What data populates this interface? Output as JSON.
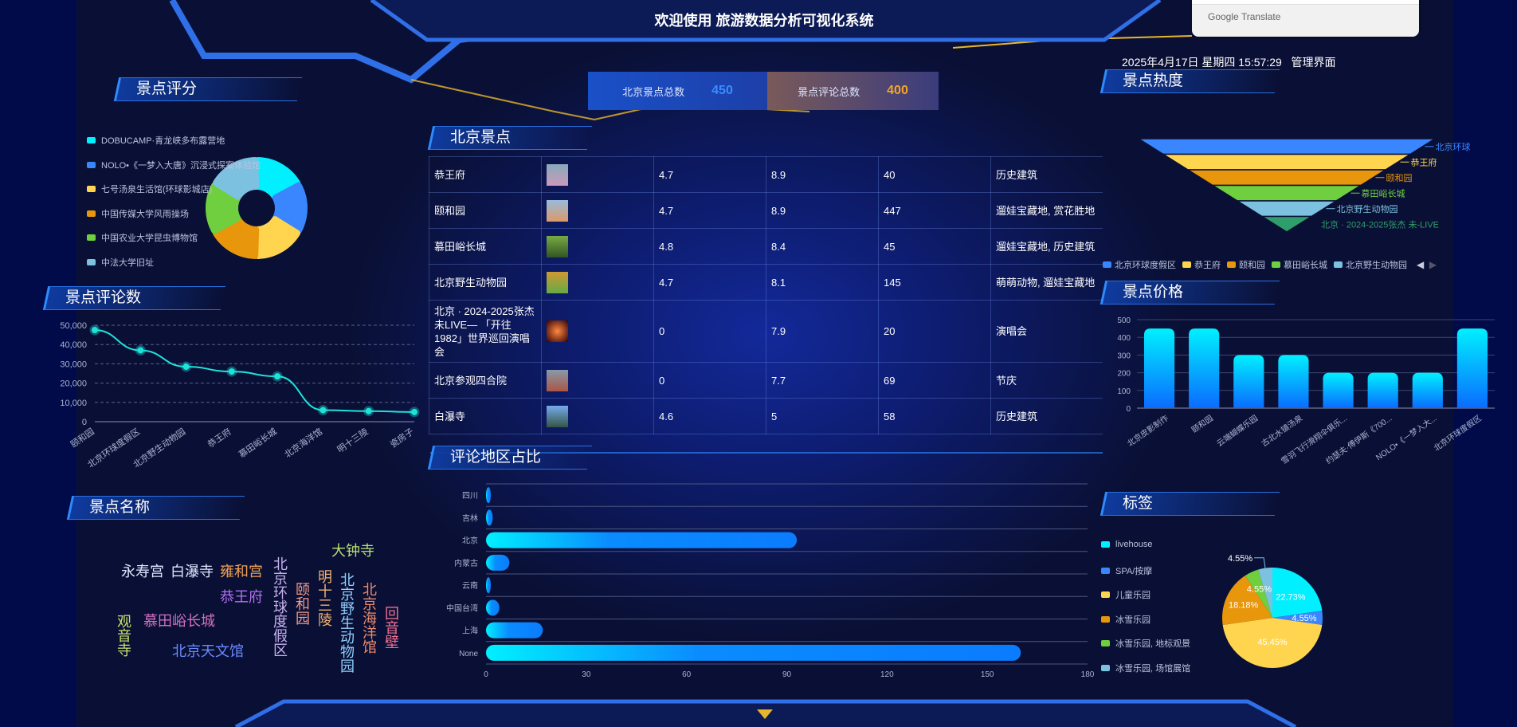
{
  "header": {
    "title": "欢迎使用 旅游数据分析可视化系统",
    "datetime": "2025年4月17日 星期四 15:57:29",
    "admin_link": "管理界面"
  },
  "stats": [
    {
      "label": "北京景点总数",
      "value": "450",
      "color": "#3a8dff"
    },
    {
      "label": "景点评论总数",
      "value": "400",
      "color": "#f5a623"
    }
  ],
  "google_translate": {
    "label": "Google Translate"
  },
  "panels": {
    "rating": "景点评分",
    "comments": "景点评论数",
    "names": "景点名称",
    "spots": "北京景点",
    "region": "评论地区占比",
    "heat": "景点热度",
    "price": "景点价格",
    "tags": "标签"
  },
  "table": {
    "rows": [
      {
        "name": "恭王府",
        "score": "4.7",
        "rating": "8.9",
        "count": "40",
        "tags": "历史建筑"
      },
      {
        "name": "颐和园",
        "score": "4.7",
        "rating": "8.9",
        "count": "447",
        "tags": "遛娃宝藏地, 赏花胜地"
      },
      {
        "name": "慕田峪长城",
        "score": "4.8",
        "rating": "8.4",
        "count": "45",
        "tags": "遛娃宝藏地, 历史建筑"
      },
      {
        "name": "北京野生动物园",
        "score": "4.7",
        "rating": "8.1",
        "count": "145",
        "tags": "萌萌动物, 遛娃宝藏地"
      },
      {
        "name": "北京 · 2024-2025张杰 未LIVE— 「开往1982」世界巡回演唱会",
        "score": "0",
        "rating": "7.9",
        "count": "20",
        "tags": "演唱会"
      },
      {
        "name": "北京参观四合院",
        "score": "0",
        "rating": "7.7",
        "count": "69",
        "tags": "节庆"
      },
      {
        "name": "白瀑寺",
        "score": "4.6",
        "rating": "5",
        "count": "58",
        "tags": "历史建筑"
      }
    ]
  },
  "word_cloud": [
    "永寿宫",
    "白瀑寺",
    "雍和宫",
    "恭王府",
    "北京环球度假区",
    "颐和园",
    "明十三陵",
    "大钟寺",
    "北京野生动物园",
    "北京海洋馆",
    "回音壁",
    "观音寺",
    "慕田峪长城",
    "北京天文馆"
  ],
  "chart_data": [
    {
      "id": "rating",
      "type": "pie",
      "variant": "rose-donut",
      "categories": [
        "DOBUCAMP·青龙峡多布露营地",
        "NOLO•《一梦入大唐》沉浸式探案体验馆",
        "七号汤泉生活馆(环球影城店)",
        "中国传媒大学风雨操场",
        "中国农业大学昆虫博物馆",
        "中法大学旧址"
      ],
      "values": [
        1,
        1,
        1,
        1,
        1,
        1
      ],
      "colors": [
        "#00f0ff",
        "#3a86ff",
        "#ffd54f",
        "#e8960c",
        "#6fcf3e",
        "#7cc1df"
      ],
      "legend": "left"
    },
    {
      "id": "comments",
      "type": "line",
      "categories": [
        "颐和园",
        "北京环球度假区",
        "北京野生动物园",
        "恭王府",
        "慕田峪长城",
        "北京海洋馆",
        "明十三陵",
        "瓷房子"
      ],
      "values": [
        47500,
        37000,
        28500,
        26000,
        23500,
        6000,
        5500,
        5000
      ],
      "ylim": [
        0,
        50000
      ],
      "yticks": [
        "0",
        "10,000",
        "20,000",
        "30,000",
        "40,000",
        "50,000"
      ],
      "grid": true,
      "color": "#1ee3d9"
    },
    {
      "id": "region",
      "type": "bar",
      "orientation": "horizontal",
      "categories": [
        "四川",
        "吉林",
        "北京",
        "内蒙古",
        "云南",
        "中国台湾",
        "上海",
        "None"
      ],
      "values": [
        1,
        2,
        93,
        7,
        1,
        4,
        17,
        160
      ],
      "xlim": [
        0,
        180
      ],
      "xticks": [
        "0",
        "30",
        "60",
        "90",
        "120",
        "150",
        "180"
      ],
      "grid": true
    },
    {
      "id": "heat",
      "type": "funnel",
      "categories": [
        "北京环球度假区",
        "恭王府",
        "颐和园",
        "慕田峪长城",
        "北京野生动物园",
        "北京 · 2024-2025张杰 未LIVE"
      ],
      "labels": [
        "北京环球",
        "恭王府",
        "颐和园",
        "慕田峪长城",
        "北京野生动物园",
        "北京 · 2024-2025张杰 未-LIVE"
      ],
      "values": [
        6,
        5,
        4,
        3,
        2,
        1
      ],
      "colors": [
        "#3a86ff",
        "#ffd54f",
        "#e8960c",
        "#6fcf3e",
        "#7cc1df",
        "#2e9e6a"
      ],
      "legend": "bottom"
    },
    {
      "id": "price",
      "type": "bar",
      "categories": [
        "北京皮影制作",
        "颐和园",
        "云端蝴蝶乐园",
        "古北水镇汤泉",
        "雪羽飞行滑翔伞俱乐...",
        "约瑟夫·傅伊斯《700...",
        "NOLO•《一梦入大...",
        "北京环球度假区"
      ],
      "values": [
        450,
        450,
        300,
        300,
        200,
        200,
        200,
        450
      ],
      "ylim": [
        0,
        500
      ],
      "yticks": [
        "0",
        "100",
        "200",
        "300",
        "400",
        "500"
      ],
      "grid": true
    },
    {
      "id": "tags",
      "type": "pie",
      "categories": [
        "livehouse",
        "SPA/按摩",
        "儿童乐园",
        "冰雪乐园",
        "冰雪乐园, 地标观景",
        "冰雪乐园, 场馆展馆"
      ],
      "values": [
        5,
        1,
        10,
        4,
        1,
        1
      ],
      "labels": [
        "22.73%",
        "4.55%",
        "45.45%",
        "18.18%",
        "4.55%",
        "4.55%"
      ],
      "colors": [
        "#00f0ff",
        "#3a86ff",
        "#ffd54f",
        "#e8960c",
        "#6fcf3e",
        "#7cc1df"
      ],
      "legend": "left"
    }
  ]
}
